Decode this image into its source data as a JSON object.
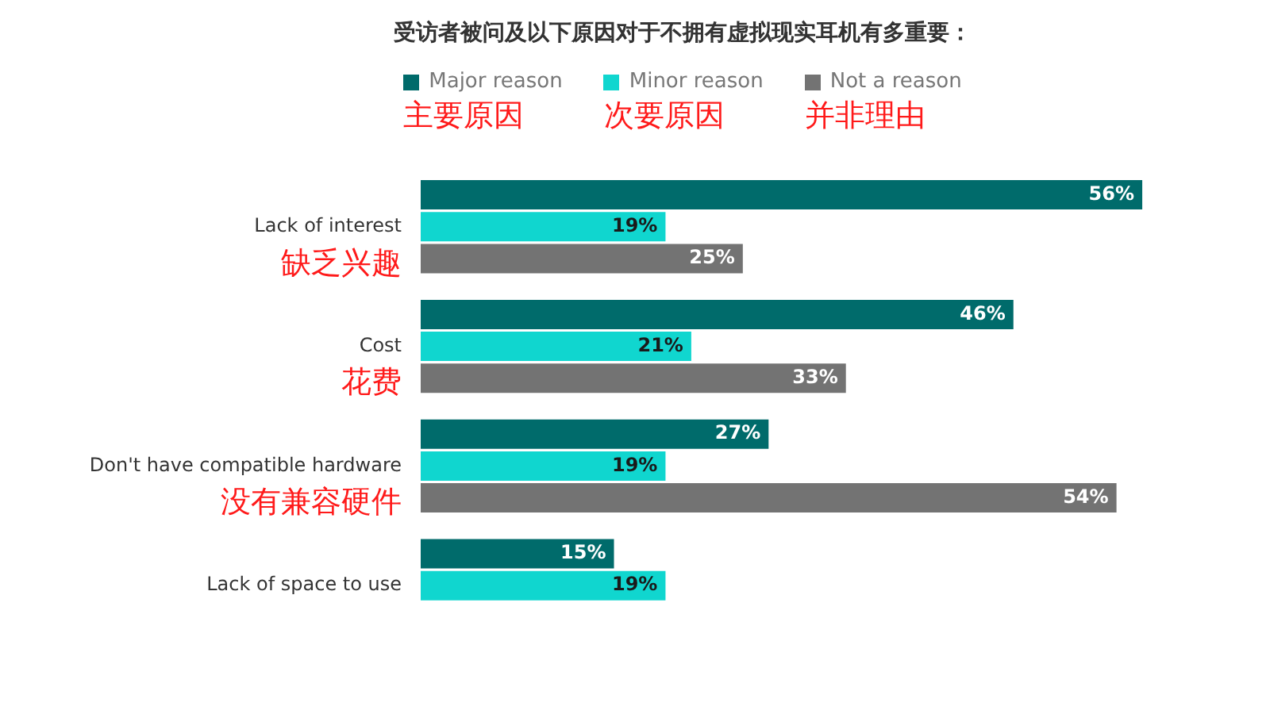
{
  "chart_data": {
    "type": "bar",
    "orientation": "horizontal",
    "title": "受访者被问及以下原因对于不拥有虚拟现实耳机有多重要：",
    "categories": [
      "Lack of interest",
      "Cost",
      "Don't have compatible hardware",
      "Lack of space to use"
    ],
    "series": [
      {
        "name": "Major reason",
        "color": "#006b6b",
        "values": [
          56,
          46,
          27,
          15
        ],
        "value_labels": [
          "56%",
          "46%",
          "27%",
          "15%"
        ]
      },
      {
        "name": "Minor reason",
        "color": "#10d6cf",
        "values": [
          19,
          21,
          19,
          19
        ],
        "value_labels": [
          "19%",
          "21%",
          "19%",
          "19%"
        ]
      },
      {
        "name": "Not a reason",
        "color": "#737373",
        "values": [
          25,
          33,
          54,
          null
        ],
        "value_labels": [
          "25%",
          "33%",
          "54%",
          null
        ]
      }
    ],
    "legend": "top",
    "grid": false,
    "annotations": [
      "主要原因",
      "次要原因",
      "并非理由",
      "缺乏兴趣",
      "花费",
      "没有兼容硬件"
    ]
  }
}
